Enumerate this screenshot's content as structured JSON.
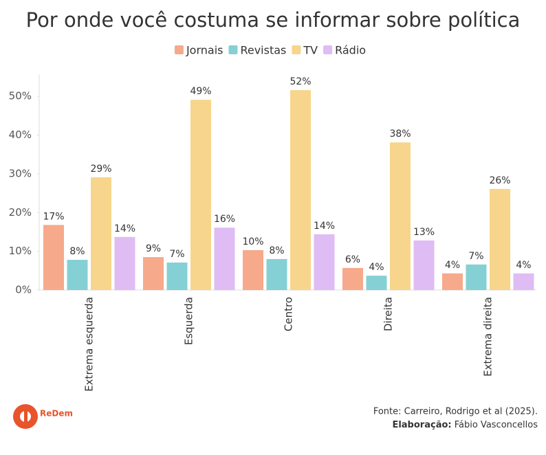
{
  "chart_data": {
    "type": "bar",
    "title": "Por onde você costuma se informar sobre política",
    "categories": [
      "Extrema esquerda",
      "Esquerda",
      "Centro",
      "Direita",
      "Extrema direita"
    ],
    "series": [
      {
        "name": "Jornais",
        "color": "#f7a98b",
        "values": [
          16.8,
          8.5,
          10.3,
          5.7,
          4.3
        ],
        "value_labels": [
          "17%",
          "9%",
          "10%",
          "6%",
          "4%"
        ]
      },
      {
        "name": "Revistas",
        "color": "#85d0d4",
        "values": [
          7.8,
          7.1,
          8.0,
          3.7,
          6.6
        ],
        "value_labels": [
          "8%",
          "7%",
          "8%",
          "4%",
          "7%"
        ]
      },
      {
        "name": "TV",
        "color": "#f7d58c",
        "values": [
          29.1,
          49.1,
          51.6,
          38.1,
          26.1
        ],
        "value_labels": [
          "29%",
          "49%",
          "52%",
          "38%",
          "26%"
        ]
      },
      {
        "name": "Rádio",
        "color": "#dfbcf3",
        "values": [
          13.7,
          16.1,
          14.4,
          12.8,
          4.3
        ],
        "value_labels": [
          "14%",
          "16%",
          "14%",
          "13%",
          "4%"
        ]
      }
    ],
    "ylim": [
      0,
      55.7
    ],
    "yticks": [
      {
        "value": 0,
        "label": "0%"
      },
      {
        "value": 10,
        "label": "10%"
      },
      {
        "value": 20,
        "label": "20%"
      },
      {
        "value": 30,
        "label": "30%"
      },
      {
        "value": 40,
        "label": "40%"
      },
      {
        "value": 50,
        "label": "50%"
      }
    ],
    "legend": "top",
    "source": "Fonte: Carreiro, Rodrigo et al (2025).",
    "credit_label": "Elaboração:",
    "credit_name": "Fábio Vasconcellos",
    "logo": "ReDem"
  }
}
